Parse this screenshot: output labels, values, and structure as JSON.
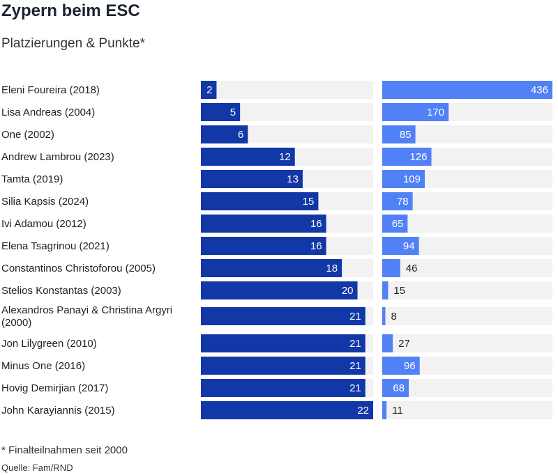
{
  "title": "Zypern beim ESC",
  "subtitle": "Platzierungen & Punkte*",
  "footnote": "* Finalteilnahmen seit 2000",
  "source": "Quelle: Fam/RND",
  "colors": {
    "placement": "#1237a6",
    "points": "#5181f6",
    "track": "#f2f2f2"
  },
  "chart_data": {
    "type": "bar",
    "categories": [
      "Eleni Foureira (2018)",
      "Lisa Andreas (2004)",
      "One (2002)",
      "Andrew Lambrou (2023)",
      "Tamta (2019)",
      "Silia Kapsis (2024)",
      "Ivi Adamou (2012)",
      "Elena Tsagrinou (2021)",
      "Constantinos Christoforou (2005)",
      "Stelios Konstantas (2003)",
      "Alexandros Panayi & Christina Argyri (2000)",
      "Jon Lilygreen (2010)",
      "Minus One (2016)",
      "Hovig Demirjian (2017)",
      "John Karayiannis (2015)"
    ],
    "series": [
      {
        "values": [
          2,
          5,
          6,
          12,
          13,
          15,
          16,
          16,
          18,
          20,
          21,
          21,
          21,
          21,
          22
        ],
        "xlim": [
          0,
          22
        ]
      },
      {
        "values": [
          436,
          170,
          85,
          126,
          109,
          78,
          65,
          94,
          46,
          15,
          8,
          27,
          96,
          68,
          11
        ],
        "xlim": [
          0,
          436
        ]
      }
    ],
    "title": "Zypern beim ESC",
    "subtitle": "Platzierungen & Punkte*"
  }
}
